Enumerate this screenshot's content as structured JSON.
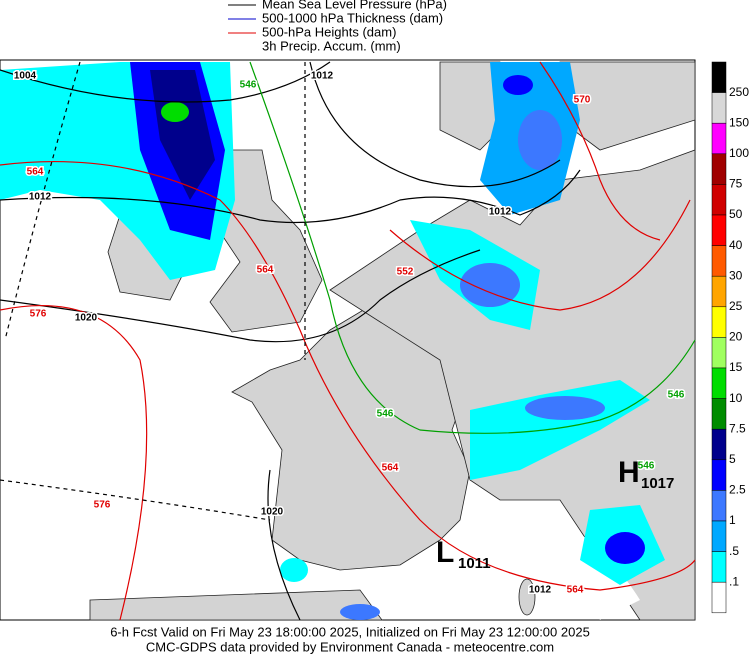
{
  "legend": [
    "Mean Sea Level Pressure (hPa)",
    "500-1000 hPa Thickness (dam)",
    "500-hPa Heights (dam)",
    "3h Precip. Accum. (mm)"
  ],
  "colorbar": {
    "labels": [
      "250",
      "150",
      "100",
      "75",
      "50",
      "40",
      "30",
      "25",
      "20",
      "15",
      "10",
      "7.5",
      "5",
      "2.5",
      "1",
      ".5",
      ".1"
    ],
    "colors": [
      "#000000",
      "#d8d8d8",
      "#ff00ff",
      "#a00000",
      "#d00000",
      "#ff0000",
      "#ff5a00",
      "#ffa500",
      "#ffff00",
      "#a0ff60",
      "#00dd00",
      "#008c00",
      "#00008c",
      "#0000ff",
      "#3c78ff",
      "#00a8ff",
      "#00ffff",
      "#ffffff"
    ]
  },
  "contour_labels": [
    "1004",
    "1012",
    "546",
    "564",
    "1012",
    "564",
    "576",
    "1020",
    "552",
    "1012",
    "546",
    "564",
    "576",
    "1020",
    "546",
    "546",
    "564",
    "1012",
    "570"
  ],
  "centers": [
    {
      "letter": "H",
      "value": "1017"
    },
    {
      "letter": "L",
      "value": "1011"
    }
  ],
  "footer": [
    "6-h Fcst Valid on Fri May 23 18:00:00 2025, Initialized on Fri May 23 12:00:00 2025",
    "CMC-GDPS data provided by Environment Canada - meteocentre.com"
  ]
}
